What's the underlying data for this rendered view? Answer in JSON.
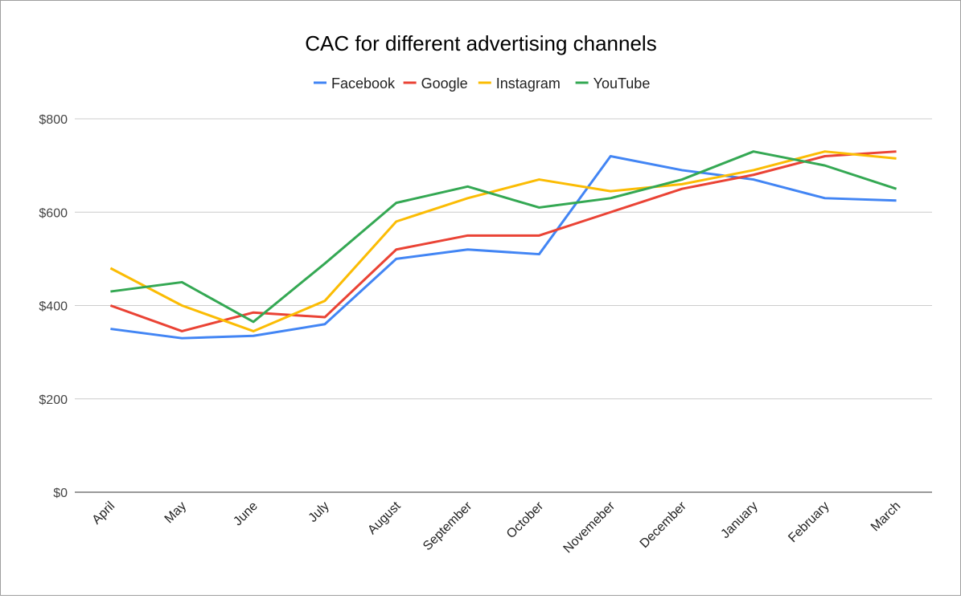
{
  "chart_data": {
    "type": "line",
    "title": "CAC for different advertising channels",
    "xlabel": "",
    "ylabel": "",
    "categories": [
      "April",
      "May",
      "June",
      "July",
      "August",
      "September",
      "October",
      "Novemeber",
      "December",
      "January",
      "February",
      "March"
    ],
    "ylim": [
      0,
      800
    ],
    "yticks": [
      0,
      200,
      400,
      600,
      800
    ],
    "ytick_labels": [
      "$0",
      "$200",
      "$400",
      "$600",
      "$800"
    ],
    "grid": true,
    "legend": "top",
    "series": [
      {
        "name": "Facebook",
        "color": "#4285f4",
        "values": [
          350,
          330,
          335,
          360,
          500,
          520,
          510,
          720,
          690,
          670,
          630,
          625
        ]
      },
      {
        "name": "Google",
        "color": "#ea4335",
        "values": [
          400,
          345,
          385,
          375,
          520,
          550,
          550,
          600,
          650,
          680,
          720,
          730
        ]
      },
      {
        "name": "Instagram",
        "color": "#fbbc04",
        "values": [
          480,
          400,
          345,
          410,
          580,
          630,
          670,
          645,
          660,
          690,
          730,
          715
        ]
      },
      {
        "name": "YouTube",
        "color": "#34a853",
        "values": [
          430,
          450,
          365,
          490,
          620,
          655,
          610,
          630,
          670,
          730,
          700,
          650
        ]
      }
    ]
  }
}
